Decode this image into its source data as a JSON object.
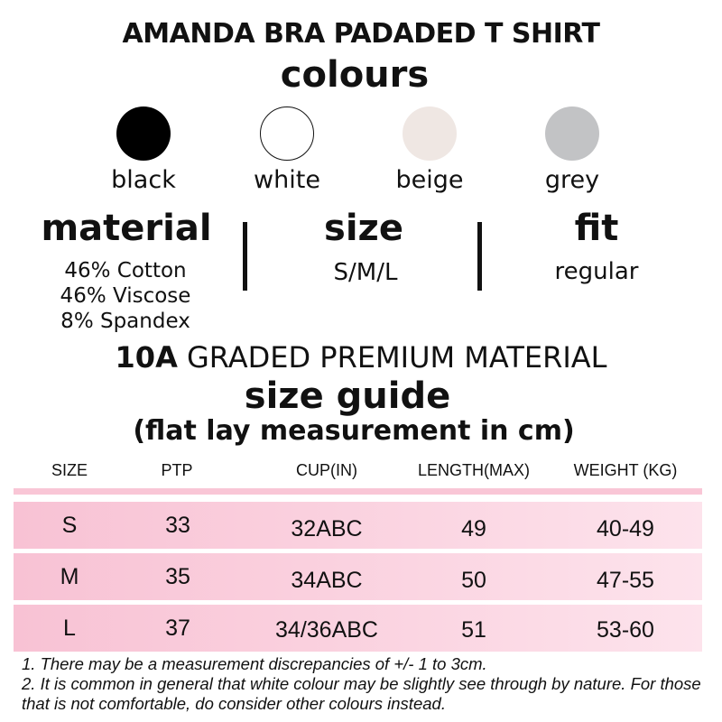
{
  "title": "AMANDA BRA PADADED T SHIRT",
  "colours_heading": "colours",
  "colours": [
    {
      "label": "black",
      "color": "#000000"
    },
    {
      "label": "white",
      "color": "#ffffff"
    },
    {
      "label": "beige",
      "color": "#efe7e3"
    },
    {
      "label": "grey",
      "color": "#c2c3c5"
    }
  ],
  "material": {
    "heading": "material",
    "lines": [
      "46% Cotton",
      "46% Viscose",
      "8% Spandex"
    ]
  },
  "size": {
    "heading": "size",
    "value": "S/M/L"
  },
  "fit": {
    "heading": "fit",
    "value": "regular"
  },
  "grade": {
    "bold": "10A",
    "rest": " GRADED PREMIUM MATERIAL"
  },
  "size_guide": {
    "heading": "size guide",
    "subheading": "(flat lay measurement in cm)"
  },
  "table": {
    "headers": [
      "SIZE",
      "PTP",
      "CUP(IN)",
      "LENGTH(MAX)",
      "WEIGHT (KG)"
    ],
    "rows": [
      [
        "S",
        "33",
        "32ABC",
        "49",
        "40-49"
      ],
      [
        "M",
        "35",
        "34ABC",
        "50",
        "47-55"
      ],
      [
        "L",
        "37",
        "34/36ABC",
        "51",
        "53-60"
      ]
    ]
  },
  "notes": [
    "1.  There may be a measurement discrepancies of +/- 1 to 3cm.",
    "2. It is common in general that white colour may be slightly see through by nature. For those that is not comfortable, do consider other colours instead."
  ]
}
